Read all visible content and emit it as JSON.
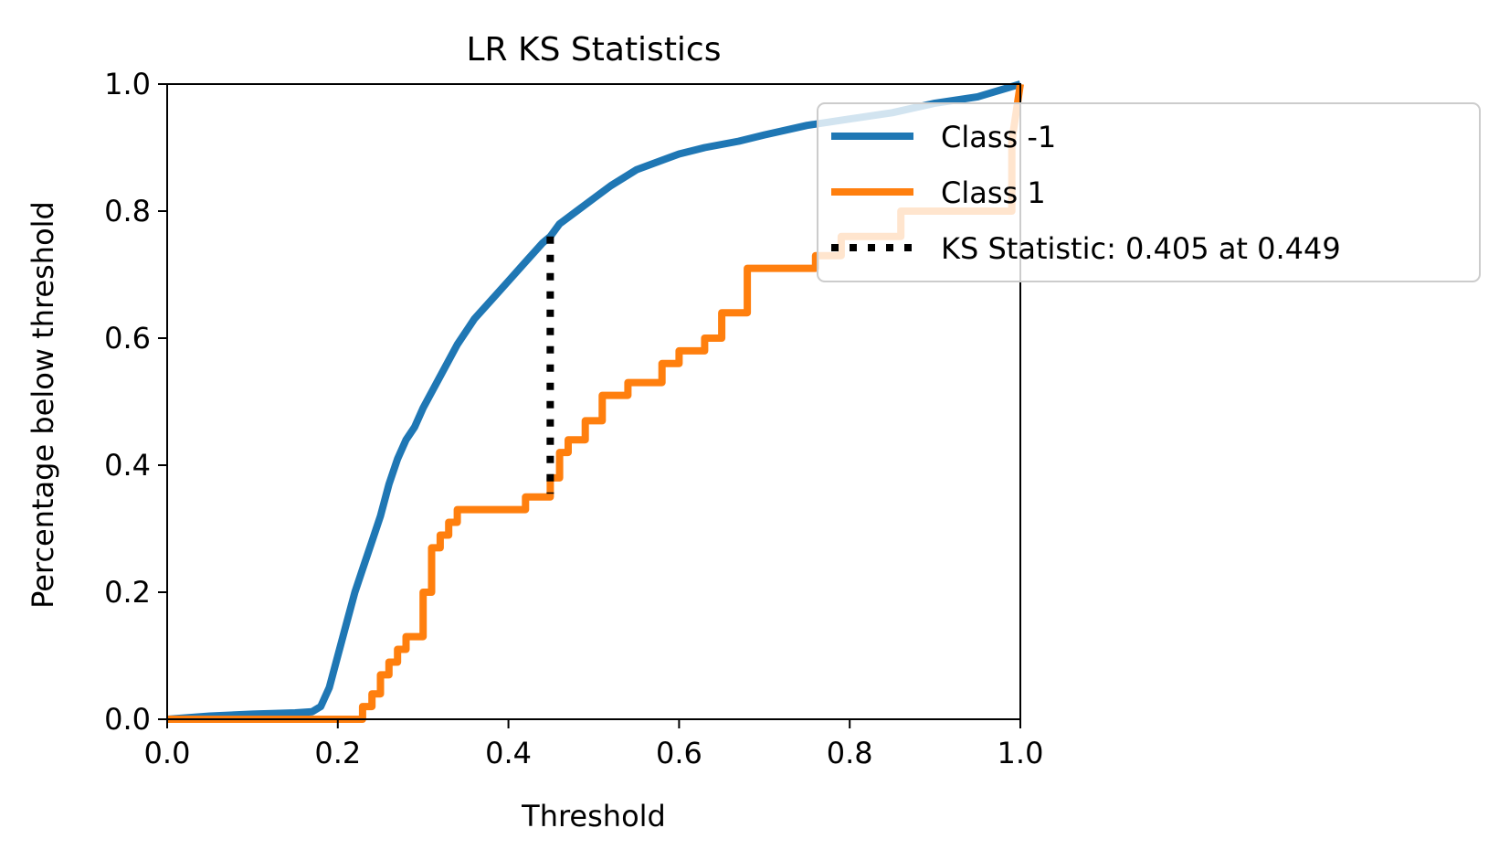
{
  "chart_data": {
    "type": "line",
    "title": "LR KS Statistics",
    "xlabel": "Threshold",
    "ylabel": "Percentage below threshold",
    "xlim": [
      0.0,
      1.0
    ],
    "ylim": [
      0.0,
      1.0
    ],
    "xticks": [
      "0.0",
      "0.2",
      "0.4",
      "0.6",
      "0.8",
      "1.0"
    ],
    "yticks": [
      "0.0",
      "0.2",
      "0.4",
      "0.6",
      "0.8",
      "1.0"
    ],
    "grid": false,
    "legend_position": "upper right, extending outside the axes",
    "series": [
      {
        "name": "Class -1",
        "color": "#1f77b4",
        "style": "solid",
        "x": [
          0.0,
          0.05,
          0.1,
          0.15,
          0.17,
          0.18,
          0.19,
          0.2,
          0.21,
          0.22,
          0.23,
          0.24,
          0.25,
          0.26,
          0.27,
          0.28,
          0.29,
          0.3,
          0.32,
          0.34,
          0.36,
          0.38,
          0.4,
          0.42,
          0.44,
          0.449,
          0.46,
          0.48,
          0.5,
          0.52,
          0.55,
          0.58,
          0.6,
          0.63,
          0.67,
          0.7,
          0.75,
          0.8,
          0.85,
          0.9,
          0.95,
          1.0
        ],
        "y": [
          0.0,
          0.005,
          0.008,
          0.01,
          0.012,
          0.02,
          0.05,
          0.1,
          0.15,
          0.2,
          0.24,
          0.28,
          0.32,
          0.37,
          0.41,
          0.44,
          0.46,
          0.49,
          0.54,
          0.59,
          0.63,
          0.66,
          0.69,
          0.72,
          0.75,
          0.76,
          0.78,
          0.8,
          0.82,
          0.84,
          0.865,
          0.88,
          0.89,
          0.9,
          0.91,
          0.92,
          0.935,
          0.945,
          0.955,
          0.97,
          0.98,
          1.0
        ]
      },
      {
        "name": "Class 1",
        "color": "#ff7f0e",
        "style": "solid",
        "x": [
          0.0,
          0.229,
          0.229,
          0.24,
          0.24,
          0.25,
          0.25,
          0.26,
          0.26,
          0.27,
          0.27,
          0.28,
          0.28,
          0.3,
          0.3,
          0.31,
          0.31,
          0.32,
          0.32,
          0.33,
          0.33,
          0.34,
          0.34,
          0.36,
          0.36,
          0.42,
          0.42,
          0.449,
          0.449,
          0.46,
          0.46,
          0.47,
          0.47,
          0.49,
          0.49,
          0.51,
          0.51,
          0.54,
          0.54,
          0.58,
          0.58,
          0.6,
          0.6,
          0.63,
          0.63,
          0.65,
          0.65,
          0.68,
          0.68,
          0.76,
          0.76,
          0.79,
          0.79,
          0.86,
          0.86,
          0.99,
          0.99,
          1.0
        ],
        "y": [
          0.0,
          0.0,
          0.02,
          0.02,
          0.04,
          0.04,
          0.07,
          0.07,
          0.09,
          0.09,
          0.11,
          0.11,
          0.13,
          0.13,
          0.2,
          0.2,
          0.27,
          0.27,
          0.29,
          0.29,
          0.31,
          0.31,
          0.33,
          0.33,
          0.33,
          0.33,
          0.35,
          0.35,
          0.38,
          0.38,
          0.42,
          0.42,
          0.44,
          0.44,
          0.47,
          0.47,
          0.51,
          0.51,
          0.53,
          0.53,
          0.56,
          0.56,
          0.58,
          0.58,
          0.6,
          0.6,
          0.64,
          0.64,
          0.71,
          0.71,
          0.73,
          0.73,
          0.76,
          0.76,
          0.8,
          0.8,
          0.91,
          1.0
        ]
      }
    ],
    "ks_line": {
      "name": "KS Statistic: 0.405 at 0.449",
      "color": "#000000",
      "style": "dotted",
      "x": 0.449,
      "y_low": 0.355,
      "y_high": 0.76
    }
  }
}
